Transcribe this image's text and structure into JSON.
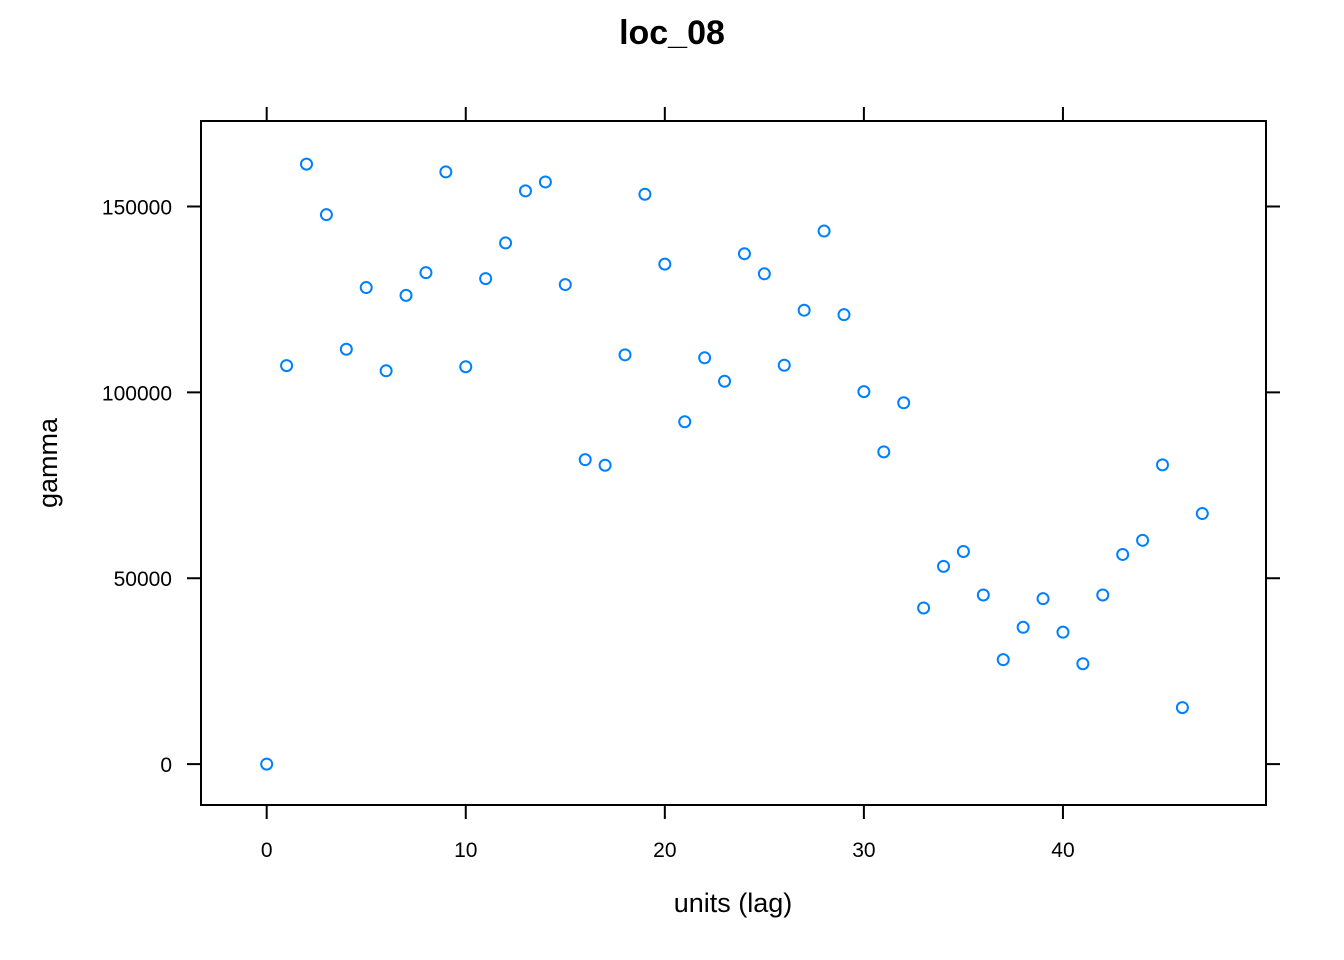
{
  "chart_data": {
    "type": "scatter",
    "title": "loc_08",
    "xlabel": "units (lag)",
    "ylabel": "gamma",
    "xlim": [
      -3.3,
      50.2
    ],
    "ylim": [
      -11000,
      173000
    ],
    "xticks": [
      0,
      10,
      20,
      30,
      40
    ],
    "yticks": [
      0,
      50000,
      100000,
      150000
    ],
    "xtick_labels": [
      "0",
      "10",
      "20",
      "30",
      "40"
    ],
    "ytick_labels": [
      "0",
      "50000",
      "100000",
      "150000"
    ],
    "grid": false,
    "legend": "none",
    "marker_color": "#0080ff",
    "marker": "open-circle",
    "series": [
      {
        "x": [
          0,
          1,
          2,
          3,
          4,
          5,
          6,
          7,
          8,
          9,
          10,
          11,
          12,
          13,
          14,
          15,
          16,
          17,
          18,
          19,
          20,
          21,
          22,
          23,
          24,
          25,
          26,
          27,
          28,
          29,
          30,
          31,
          32,
          33,
          34,
          35,
          36,
          37,
          38,
          39,
          40,
          41,
          42,
          43,
          44,
          45,
          46,
          47
        ],
        "y": [
          0,
          107200,
          161400,
          147800,
          111600,
          128200,
          105800,
          126100,
          132200,
          159300,
          106900,
          130600,
          140200,
          154200,
          156600,
          129000,
          81900,
          80400,
          110100,
          153300,
          134500,
          92100,
          109300,
          103000,
          137300,
          131900,
          107300,
          122100,
          143400,
          120900,
          100200,
          84000,
          97200,
          42000,
          53200,
          57200,
          45500,
          28100,
          36800,
          44500,
          35500,
          27000,
          45500,
          56400,
          60200,
          80500,
          15200,
          67400
        ]
      }
    ]
  }
}
